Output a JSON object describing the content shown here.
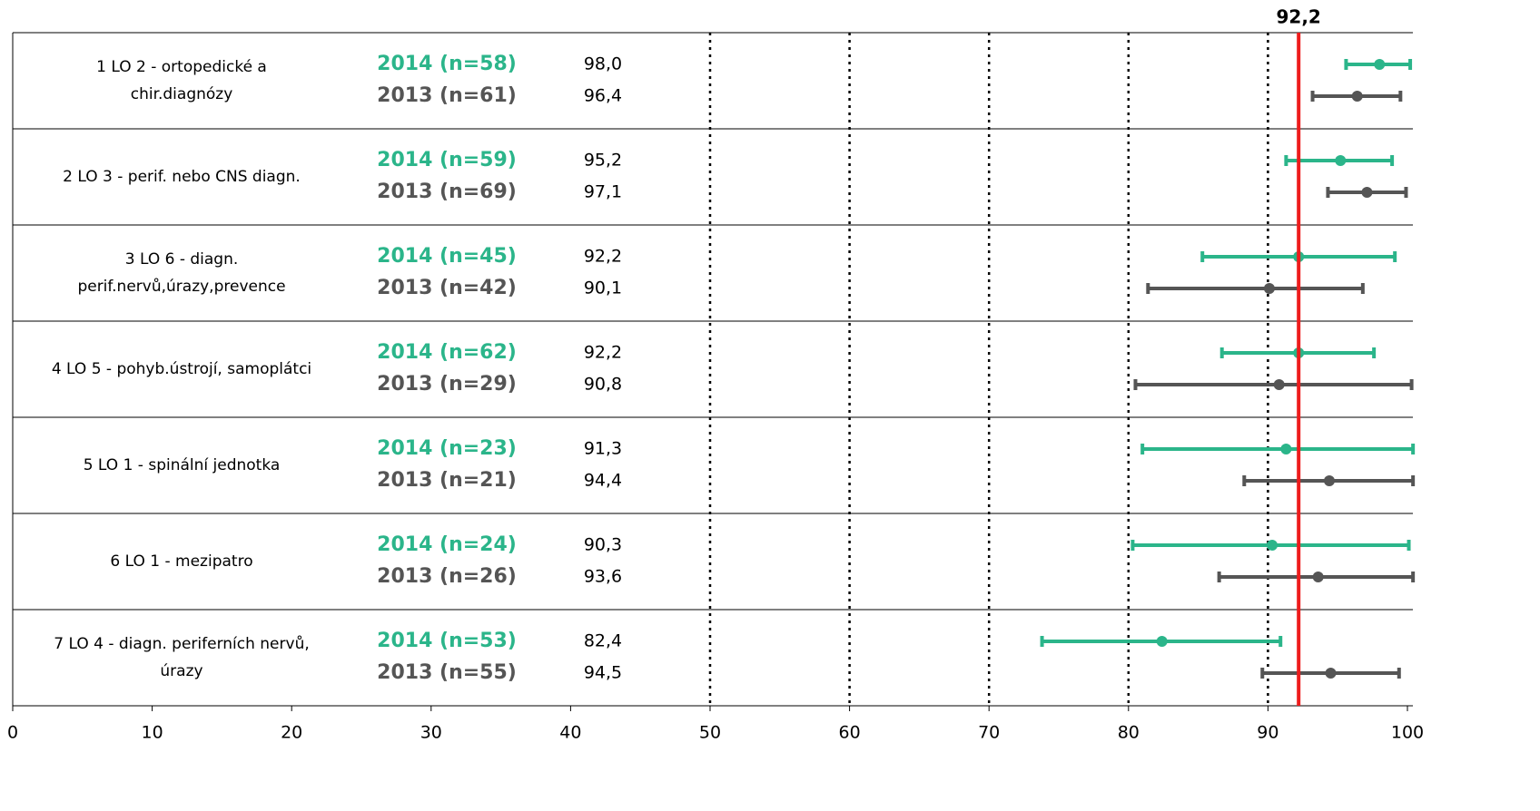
{
  "chart_data": {
    "type": "forest",
    "xlim": [
      0,
      100
    ],
    "xticks": [
      0,
      10,
      20,
      30,
      40,
      50,
      60,
      70,
      80,
      90,
      100
    ],
    "gridlines": [
      50,
      60,
      70,
      80,
      90
    ],
    "reference": {
      "value": 92.2,
      "label": "92,2",
      "color": "#ee1c1c"
    },
    "colors": [
      "#2bb58a",
      "#555555"
    ],
    "rows": [
      {
        "label": [
          "1 LO 2 - ortopedické a",
          "chir.diagnózy"
        ],
        "entries": [
          {
            "name": "2014 (n=58)",
            "value": 98.0,
            "value_label": "98,0",
            "low": 95.6,
            "high": 100.2
          },
          {
            "name": "2013 (n=61)",
            "value": 96.4,
            "value_label": "96,4",
            "low": 93.2,
            "high": 99.5
          }
        ]
      },
      {
        "label": [
          "2 LO 3 - perif. nebo CNS diagn."
        ],
        "entries": [
          {
            "name": "2014 (n=59)",
            "value": 95.2,
            "value_label": "95,2",
            "low": 91.3,
            "high": 98.9
          },
          {
            "name": "2013 (n=69)",
            "value": 97.1,
            "value_label": "97,1",
            "low": 94.3,
            "high": 99.9
          }
        ]
      },
      {
        "label": [
          "3 LO 6 - diagn.",
          "perif.nervů,úrazy,prevence"
        ],
        "entries": [
          {
            "name": "2014 (n=45)",
            "value": 92.2,
            "value_label": "92,2",
            "low": 85.3,
            "high": 99.1
          },
          {
            "name": "2013 (n=42)",
            "value": 90.1,
            "value_label": "90,1",
            "low": 81.4,
            "high": 96.8
          }
        ]
      },
      {
        "label": [
          "4 LO 5 - pohyb.ústrojí, samoplátci"
        ],
        "entries": [
          {
            "name": "2014 (n=62)",
            "value": 92.2,
            "value_label": "92,2",
            "low": 86.7,
            "high": 97.6
          },
          {
            "name": "2013 (n=29)",
            "value": 90.8,
            "value_label": "90,8",
            "low": 80.5,
            "high": 100.3
          }
        ]
      },
      {
        "label": [
          "5 LO 1 - spinální jednotka"
        ],
        "entries": [
          {
            "name": "2014 (n=23)",
            "value": 91.3,
            "value_label": "91,3",
            "low": 81.0,
            "high": 100.4
          },
          {
            "name": "2013 (n=21)",
            "value": 94.4,
            "value_label": "94,4",
            "low": 88.3,
            "high": 100.4
          }
        ]
      },
      {
        "label": [
          "6 LO 1 - mezipatro"
        ],
        "entries": [
          {
            "name": "2014 (n=24)",
            "value": 90.3,
            "value_label": "90,3",
            "low": 80.3,
            "high": 100.1
          },
          {
            "name": "2013 (n=26)",
            "value": 93.6,
            "value_label": "93,6",
            "low": 86.5,
            "high": 100.4
          }
        ]
      },
      {
        "label": [
          "7 LO 4 - diagn. periferních nervů,",
          "úrazy"
        ],
        "entries": [
          {
            "name": "2014 (n=53)",
            "value": 82.4,
            "value_label": "82,4",
            "low": 73.8,
            "high": 90.9
          },
          {
            "name": "2013 (n=55)",
            "value": 94.5,
            "value_label": "94,5",
            "low": 89.6,
            "high": 99.4
          }
        ]
      }
    ]
  }
}
